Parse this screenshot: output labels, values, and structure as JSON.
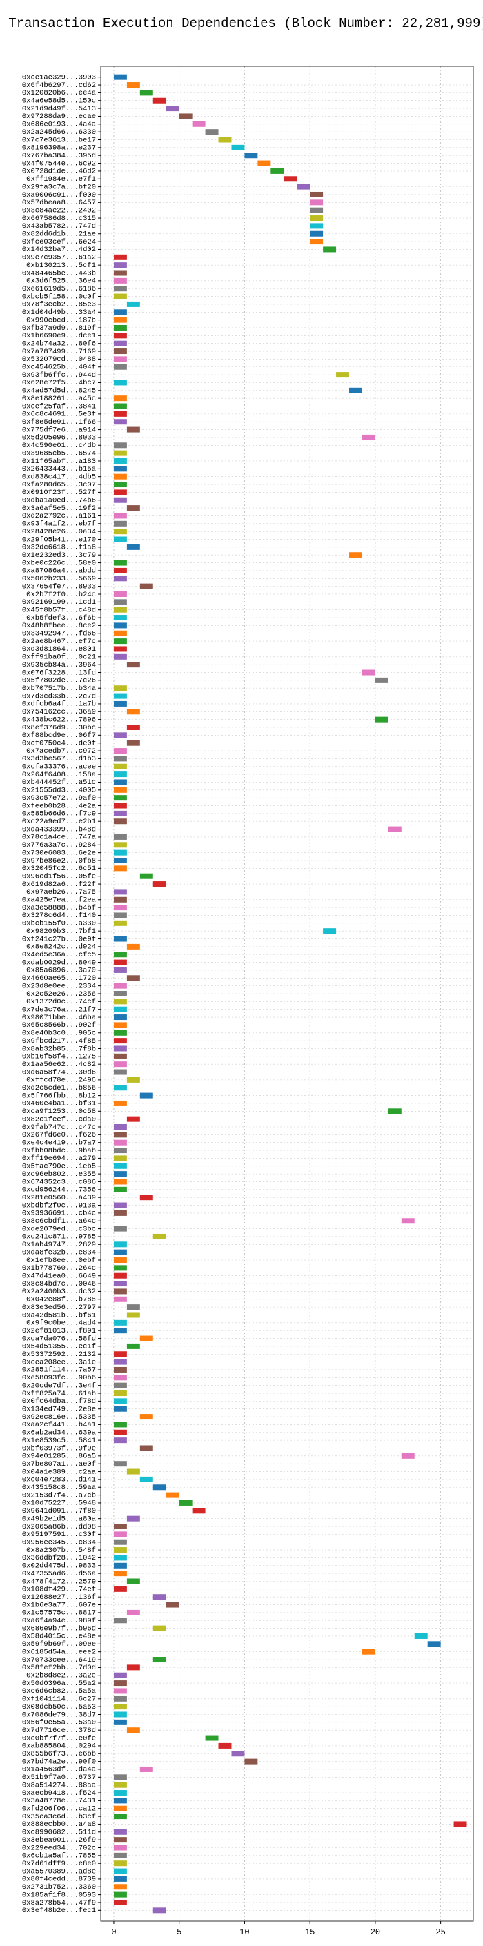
{
  "chart_data": {
    "type": "gantt",
    "title": "Transaction Execution Dependencies (Block Number: 22,281,999)",
    "palette": [
      "#1f77b4",
      "#ff7f0e",
      "#2ca02c",
      "#d62728",
      "#9467bd",
      "#8c564b",
      "#e377c2",
      "#7f7f7f",
      "#bcbd22",
      "#17becf"
    ],
    "xlim": [
      -1,
      27.5
    ],
    "xticks": [
      0,
      5,
      10,
      15,
      20,
      25
    ],
    "grid": true,
    "categories": [
      "0xce1ae329...3903",
      "0x6f4b6297...cd62",
      "0x120820b6...ee4a",
      "0x4a6e58d5...150c",
      "0x21d9d49f...5413",
      "0x97288da9...ecae",
      "0x686e0193...4a4a",
      "0x2a245d66...6330",
      "0x7c7e3613...be17",
      "0x8196398a...e237",
      "0x767ba384...395d",
      "0x4f07544e...6c92",
      "0x0728d1de...46d2",
      "0xff1984e...e7f1",
      "0x29fa3c7a...bf20",
      "0xa9006c91...f000",
      "0x57dbeaa8...6457",
      "0x3c84ae22...2402",
      "0x667586d8...c315",
      "0x43ab5782...747d",
      "0x82dd6d1b...21ae",
      "0xfce03cef...6e24",
      "0x14d32ba7...4d02",
      "0x9e7c9357...61a2",
      "0xb130213...5cf1",
      "0x484465be...443b",
      "0x3d6f525...36e4",
      "0xe61619d5...6186",
      "0xbcb5f158...0c0f",
      "0x78f3ecb2...85e3",
      "0x1d04d49b...33a4",
      "0x990cbcd...187b",
      "0xfb37a9d9...819f",
      "0x1b6690e9...dce1",
      "0x24b74a32...80f6",
      "0x7a787499...7169",
      "0x532079cd...0488",
      "0xc454625b...404f",
      "0x93fb6ffc...944d",
      "0x628e72f5...4bc7",
      "0x4ad57d5d...8245",
      "0x8e188261...a45c",
      "0xcef25faf...3841",
      "0x6c8c4691...5e3f",
      "0xf8e5de91...1f66",
      "0x775df7e6...a914",
      "0x5d205e96...8033",
      "0x4c590e01...c4db",
      "0x39685cb5...6574",
      "0x11f65abf...a183",
      "0x26433443...b15a",
      "0xd838c417...4db5",
      "0xfa280d65...3c07",
      "0x0910f23f...527f",
      "0xdba1a0ed...74b6",
      "0x3a6af5e5...19f2",
      "0xd2a2792c...a161",
      "0x93f4a1f2...eb7f",
      "0x28428e26...0a34",
      "0x29f05b41...e170",
      "0x32dc6618...f1a8",
      "0x1e232ed3...3c79",
      "0xbe0c226c...58e0",
      "0xa87086a4...abdd",
      "0x5062b233...5669",
      "0x37654fe7...8933",
      "0x2b7f2f0...b24c",
      "0x92169199...1cd1",
      "0x45f8b57f...c48d",
      "0xb5fdef3...6f6b",
      "0x48b8fbee...8ce2",
      "0x33492947...fd66",
      "0x2ae8b467...ef7c",
      "0xd3d81864...e801",
      "0xff91ba0f...0c21",
      "0x935cb84a...3964",
      "0x076f3228...13fd",
      "0x5f7802de...7c26",
      "0xb707517b...b34a",
      "0x7d3cd33b...2c7d",
      "0xdfcb6a4f...1a7b",
      "0x754162cc...36a9",
      "0x438bc622...7896",
      "0x8ef376d9...30bc",
      "0xf88bcd9e...06f7",
      "0xcf0750c4...de0f",
      "0x7acedb7...c972",
      "0x3d3be567...d1b3",
      "0xcfa33376...acee",
      "0x264f6408...158a",
      "0xb444452f...a51c",
      "0x21555dd3...4005",
      "0x93c57e72...9af0",
      "0xfeeb0b28...4e2a",
      "0x585b66d6...f7c9",
      "0xc22a9ed7...e2b1",
      "0xda433399...b48d",
      "0x78c1a4ce...747a",
      "0x776a3a7c...9284",
      "0x730e6083...6e2e",
      "0x97be86e2...0fb8",
      "0x32045fc2...6c51",
      "0x96ed1f56...05fe",
      "0x619d82a6...f22f",
      "0x97aeb26...7a75",
      "0xa425e7ea...f2ea",
      "0xa3e58888...b4bf",
      "0x3278c6d4...f140",
      "0xbcb155f0...a330",
      "0x98209b3...7bf1",
      "0xf241c27b...0e9f",
      "0x8e8242c...d924",
      "0x4ed5e36a...cfc5",
      "0xdab0029d...8049",
      "0x85a6896...3a70",
      "0x4660ae65...1720",
      "0x23d8e0ee...2334",
      "0x2c52e26...2356",
      "0x1372d0c...74cf",
      "0x7de3c76a...21f7",
      "0x98071bbe...46ba",
      "0x65c8566b...902f",
      "0x8e40b3c0...905c",
      "0x9fbcd217...4f85",
      "0x8ab32b85...7f8b",
      "0xb16f58f4...1275",
      "0x1aa56e62...4c82",
      "0xd6a58f74...30d6",
      "0xffcd78e...2496",
      "0xd2c5cde1...b856",
      "0x5f766fbb...8b12",
      "0x460e4ba1...bf31",
      "0xca9f1253...0c58",
      "0x82c1feef...cda0",
      "0x9fab747c...c47c",
      "0x267fd6e0...f626",
      "0xe4c4e419...b7a7",
      "0xfbb08bdc...9bab",
      "0xff19e694...a279",
      "0x5fac790e...1eb5",
      "0xc96eb802...e355",
      "0x674352c3...c086",
      "0xcd956244...7356",
      "0x281e0560...a439",
      "0xbdbf2f0c...913a",
      "0x93936691...cb4c",
      "0x8c6cbdf1...a64c",
      "0xde2079ed...c3bc",
      "0xc241c871...9785",
      "0x1ab49747...2829",
      "0xda8fe32b...e834",
      "0x1efb8ee...0ebf",
      "0x1b778760...264c",
      "0x47d41ea0...6649",
      "0x8c84bd7c...0046",
      "0x2a2400b3...dc32",
      "0x042e88f...b788",
      "0x83e3ed56...2797",
      "0xa42d581b...bf61",
      "0x9f9c0be...4ad4",
      "0x2ef81013...f891",
      "0xca7da076...58fd",
      "0x54d51355...ec1f",
      "0x53372592...2132",
      "0xeea208ee...3a1e",
      "0x2851f114...7a57",
      "0xe58093fc...90b6",
      "0x20cde7df...3e4f",
      "0xff825a74...61ab",
      "0x0fc64dba...f78d",
      "0x134ed749...2e8e",
      "0x92ec816e...5335",
      "0xaa2cf441...b4a1",
      "0x6ab2ad34...639a",
      "0x1e8539c5...5841",
      "0xbf03973f...9f9e",
      "0x94e01285...86a5",
      "0x7be807a1...ae0f",
      "0x04a1e389...c2aa",
      "0xc04e7283...d141",
      "0x435158c8...59aa",
      "0x2153d7f4...a7cb",
      "0x10d75227...5948",
      "0x9641d091...7f80",
      "0x49b2e1d5...a80a",
      "0x2065a86b...dd08",
      "0x95197591...c30f",
      "0x956ee345...c834",
      "0x8a2307b...548f",
      "0x36ddbf28...1042",
      "0x02dd475d...9833",
      "0x47355ad6...d56a",
      "0x478f4172...2579",
      "0x108df429...74ef",
      "0x12688e27...136f",
      "0x1b6e3a77...607e",
      "0x1c57575c...8817",
      "0xa6f4a94e...989f",
      "0x686e9b7f...b96d",
      "0x58d4015c...e48e",
      "0x59f9b69f...09ee",
      "0x6185d54a...eee2",
      "0x70733cee...6419",
      "0x58fef2bb...7d0d",
      "0x2b8d8e2...3a2e",
      "0x50d0396a...55a2",
      "0xc6d6cb82...5a5a",
      "0xf1041114...6c27",
      "0x08dcb50c...5a53",
      "0x7086de79...38d7",
      "0x56f0e55a...53a0",
      "0x7d7716ce...378d",
      "0xe0bf7f7f...e0fe",
      "0xab885804...0294",
      "0x855b6f73...e6bb",
      "0x7bd74a2e...90f0",
      "0x1a4563df...da4a",
      "0x51b9f7a0...6737",
      "0x8a514274...88aa",
      "0xaecb9418...f524",
      "0x3a48778e...7431",
      "0xfd206f06...ca12",
      "0x35ca3c6d...b3cf",
      "0x888ecbb0...a4a8",
      "0xc8990682...511d",
      "0x3ebea901...26f9",
      "0x229eed34...702c",
      "0x6cb1a5af...7855",
      "0x7d61dff9...e8e0",
      "0xa5570389...ad8e",
      "0x80f4cedd...8739",
      "0x2731b752...3360",
      "0x185af1f8...0593",
      "0x8a278b54...47f9",
      "0x3ef48b2e...fec1"
    ],
    "values": [
      0,
      1,
      2,
      3,
      4,
      5,
      6,
      7,
      8,
      9,
      10,
      11,
      12,
      13,
      14,
      15,
      15,
      15,
      15,
      15,
      15,
      15,
      16,
      0,
      0,
      0,
      0,
      0,
      0,
      1,
      0,
      0,
      0,
      0,
      0,
      0,
      0,
      0,
      17,
      0,
      18,
      0,
      0,
      0,
      0,
      1,
      19,
      0,
      0,
      0,
      0,
      0,
      0,
      0,
      0,
      1,
      0,
      0,
      0,
      0,
      1,
      18,
      0,
      0,
      0,
      2,
      0,
      0,
      0,
      0,
      0,
      0,
      0,
      0,
      0,
      1,
      19,
      20,
      0,
      0,
      0,
      1,
      20,
      1,
      0,
      1,
      0,
      0,
      0,
      0,
      0,
      0,
      0,
      0,
      0,
      0,
      21,
      0,
      0,
      0,
      0,
      0,
      2,
      3,
      0,
      0,
      0,
      0,
      0,
      16,
      0,
      1,
      0,
      0,
      0,
      1,
      0,
      0,
      0,
      0,
      0,
      0,
      0,
      0,
      0,
      0,
      0,
      0,
      1,
      0,
      2,
      0,
      21,
      1,
      0,
      0,
      0,
      0,
      0,
      0,
      0,
      0,
      0,
      2,
      0,
      0,
      22,
      0,
      3,
      0,
      0,
      0,
      0,
      0,
      0,
      0,
      0,
      1,
      1,
      0,
      0,
      2,
      1,
      0,
      0,
      0,
      0,
      0,
      0,
      0,
      0,
      2,
      0,
      0,
      0,
      2,
      22,
      0,
      1,
      2,
      3,
      4,
      5,
      6,
      1,
      0,
      0,
      0,
      0,
      0,
      0,
      0,
      1,
      0,
      3,
      4,
      1,
      0,
      3,
      23,
      24,
      19,
      3,
      1,
      0,
      0,
      0,
      0,
      0,
      0,
      0,
      1,
      7,
      8,
      9,
      10,
      2,
      0,
      0,
      0,
      0,
      0,
      0,
      26,
      0,
      0,
      0,
      0,
      0,
      0,
      0,
      0,
      0,
      0,
      3
    ]
  }
}
